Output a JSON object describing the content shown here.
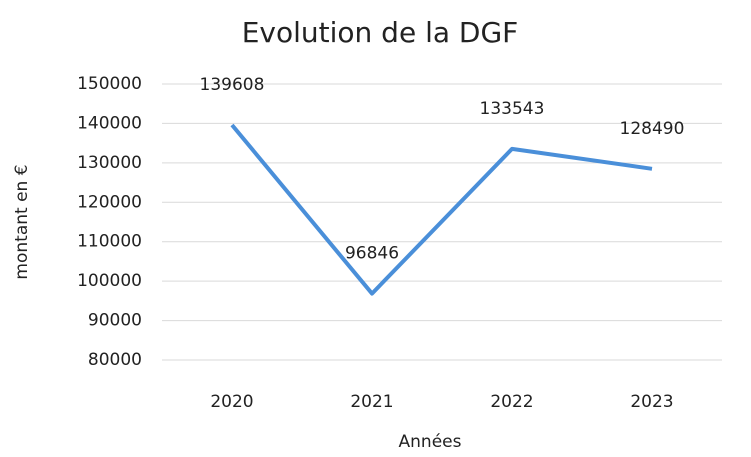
{
  "chart_data": {
    "type": "line",
    "title": "Evolution de la DGF",
    "x_label": "Années",
    "y_label": "montant en €",
    "categories": [
      "2020",
      "2021",
      "2022",
      "2023"
    ],
    "series": [
      {
        "name": "DGF",
        "color": "#4a8fd9",
        "values": [
          139608,
          96846,
          133543,
          128490
        ]
      }
    ],
    "ylim": [
      80000,
      150000
    ],
    "yticks": [
      80000,
      90000,
      100000,
      110000,
      120000,
      130000,
      140000,
      150000
    ],
    "grid": true
  }
}
